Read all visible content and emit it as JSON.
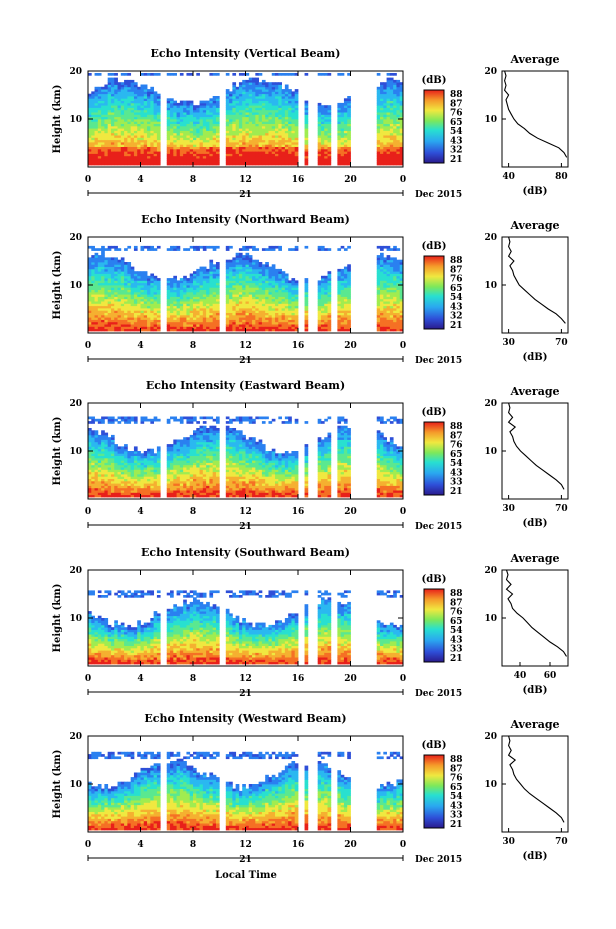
{
  "figure": {
    "bottom_label": "Local Time",
    "date_label": "Dec 2015",
    "day_label": "21",
    "x_ticks": [
      "0",
      "4",
      "8",
      "12",
      "16",
      "20",
      "0"
    ],
    "y_label": "Height (km)",
    "colorbar_unit": "(dB)",
    "average_title": "Average",
    "average_unit": "(dB)"
  },
  "chart_data": [
    {
      "type": "heatmap",
      "title": "Echo Intensity (Vertical Beam)",
      "xlabel": "",
      "ylabel": "Height (km)",
      "x_ticks": [
        0,
        4,
        8,
        12,
        16,
        20,
        24
      ],
      "y_ticks": [
        10,
        20
      ],
      "colorbar_ticks": [
        "88",
        "87",
        "76",
        "65",
        "54",
        "43",
        "32",
        "21"
      ],
      "average": {
        "xlim": [
          35,
          85
        ],
        "x_ticks": [
          "40",
          "80"
        ],
        "profile": [
          [
            84,
            2
          ],
          [
            82,
            3
          ],
          [
            78,
            4
          ],
          [
            70,
            5
          ],
          [
            62,
            6
          ],
          [
            56,
            7
          ],
          [
            52,
            8
          ],
          [
            47,
            9
          ],
          [
            44,
            10
          ],
          [
            42,
            11
          ],
          [
            40,
            12
          ],
          [
            39,
            13
          ],
          [
            38,
            14
          ],
          [
            40,
            15
          ],
          [
            37,
            16
          ],
          [
            38,
            17
          ],
          [
            37,
            18
          ],
          [
            38,
            19
          ],
          [
            37,
            20
          ]
        ]
      }
    },
    {
      "type": "heatmap",
      "title": "Echo Intensity (Northward Beam)",
      "xlabel": "",
      "ylabel": "Height (km)",
      "x_ticks": [
        0,
        4,
        8,
        12,
        16,
        20,
        24
      ],
      "y_ticks": [
        10,
        20
      ],
      "colorbar_ticks": [
        "88",
        "87",
        "76",
        "65",
        "54",
        "43",
        "32",
        "21"
      ],
      "average": {
        "xlim": [
          25,
          75
        ],
        "x_ticks": [
          "30",
          "70"
        ],
        "profile": [
          [
            73,
            2
          ],
          [
            70,
            3
          ],
          [
            66,
            4
          ],
          [
            60,
            5
          ],
          [
            55,
            6
          ],
          [
            50,
            7
          ],
          [
            46,
            8
          ],
          [
            42,
            9
          ],
          [
            38,
            10
          ],
          [
            36,
            11
          ],
          [
            34,
            12
          ],
          [
            33,
            13
          ],
          [
            31,
            14
          ],
          [
            34,
            15
          ],
          [
            30,
            16
          ],
          [
            32,
            17
          ],
          [
            30,
            18
          ],
          [
            31,
            19
          ],
          [
            30,
            20
          ]
        ]
      }
    },
    {
      "type": "heatmap",
      "title": "Echo Intensity (Eastward Beam)",
      "xlabel": "",
      "ylabel": "Height (km)",
      "x_ticks": [
        0,
        4,
        8,
        12,
        16,
        20,
        24
      ],
      "y_ticks": [
        10,
        20
      ],
      "colorbar_ticks": [
        "88",
        "87",
        "76",
        "65",
        "54",
        "43",
        "33",
        "21"
      ],
      "average": {
        "xlim": [
          25,
          75
        ],
        "x_ticks": [
          "30",
          "70"
        ],
        "profile": [
          [
            72,
            2
          ],
          [
            70,
            3
          ],
          [
            66,
            4
          ],
          [
            61,
            5
          ],
          [
            56,
            6
          ],
          [
            51,
            7
          ],
          [
            47,
            8
          ],
          [
            43,
            9
          ],
          [
            39,
            10
          ],
          [
            36,
            11
          ],
          [
            34,
            12
          ],
          [
            33,
            13
          ],
          [
            31,
            14
          ],
          [
            35,
            15
          ],
          [
            30,
            16
          ],
          [
            33,
            17
          ],
          [
            30,
            18
          ],
          [
            31,
            19
          ],
          [
            30,
            20
          ]
        ]
      }
    },
    {
      "type": "heatmap",
      "title": "Echo Intensity (Southward Beam)",
      "xlabel": "",
      "ylabel": "Height (km)",
      "x_ticks": [
        0,
        4,
        8,
        12,
        16,
        20,
        24
      ],
      "y_ticks": [
        10,
        20
      ],
      "colorbar_ticks": [
        "88",
        "87",
        "76",
        "65",
        "54",
        "43",
        "33",
        "21"
      ],
      "average": {
        "xlim": [
          28,
          72
        ],
        "x_ticks": [
          "40",
          "60"
        ],
        "profile": [
          [
            71,
            2
          ],
          [
            69,
            3
          ],
          [
            65,
            4
          ],
          [
            60,
            5
          ],
          [
            56,
            6
          ],
          [
            52,
            7
          ],
          [
            48,
            8
          ],
          [
            45,
            9
          ],
          [
            42,
            10
          ],
          [
            38,
            11
          ],
          [
            35,
            12
          ],
          [
            34,
            13
          ],
          [
            32,
            14
          ],
          [
            35,
            15
          ],
          [
            31,
            16
          ],
          [
            34,
            17
          ],
          [
            31,
            18
          ],
          [
            32,
            19
          ],
          [
            31,
            20
          ]
        ]
      }
    },
    {
      "type": "heatmap",
      "title": "Echo Intensity (Westward Beam)",
      "xlabel": "",
      "ylabel": "Height (km)",
      "x_ticks": [
        0,
        4,
        8,
        12,
        16,
        20,
        24
      ],
      "y_ticks": [
        10,
        20
      ],
      "colorbar_ticks": [
        "88",
        "87",
        "76",
        "65",
        "54",
        "43",
        "33",
        "21"
      ],
      "average": {
        "xlim": [
          25,
          75
        ],
        "x_ticks": [
          "30",
          "70"
        ],
        "profile": [
          [
            72,
            2
          ],
          [
            70,
            3
          ],
          [
            66,
            4
          ],
          [
            61,
            5
          ],
          [
            56,
            6
          ],
          [
            51,
            7
          ],
          [
            46,
            8
          ],
          [
            42,
            9
          ],
          [
            39,
            10
          ],
          [
            36,
            11
          ],
          [
            34,
            12
          ],
          [
            33,
            13
          ],
          [
            31,
            14
          ],
          [
            35,
            15
          ],
          [
            30,
            16
          ],
          [
            32,
            17
          ],
          [
            30,
            18
          ],
          [
            31,
            19
          ],
          [
            30,
            20
          ]
        ]
      }
    }
  ]
}
